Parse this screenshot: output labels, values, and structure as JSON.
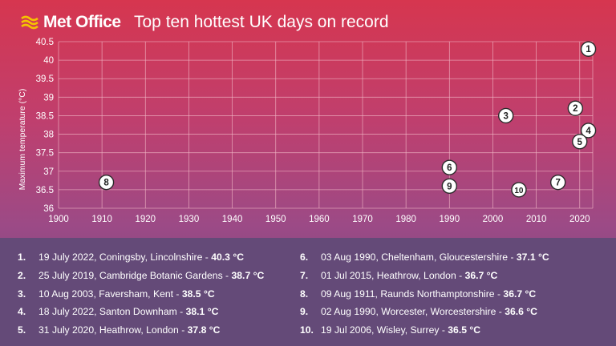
{
  "header": {
    "logo_text": "Met Office",
    "title": "Top ten hottest UK days on record"
  },
  "colors": {
    "grid": "#f2b8c6",
    "axis_text": "#ffffff",
    "marker_fill": "#ffffff",
    "marker_stroke": "#2a2a2a",
    "list_bg": "#644a78"
  },
  "chart_data": {
    "type": "scatter",
    "title": "",
    "xlabel": "",
    "ylabel": "Maximum temperature (°C)",
    "xlim": [
      1900,
      2023
    ],
    "ylim": [
      36,
      40.5
    ],
    "x_ticks": [
      1900,
      1910,
      1920,
      1930,
      1940,
      1950,
      1960,
      1970,
      1980,
      1990,
      2000,
      2010,
      2020
    ],
    "y_ticks": [
      36,
      36.5,
      37,
      37.5,
      38,
      38.5,
      39,
      39.5,
      40,
      40.5
    ],
    "grid": true,
    "points": [
      {
        "label": "1",
        "x": 2022,
        "y": 40.3
      },
      {
        "label": "2",
        "x": 2019,
        "y": 38.7
      },
      {
        "label": "3",
        "x": 2003,
        "y": 38.5
      },
      {
        "label": "4",
        "x": 2022,
        "y": 38.1
      },
      {
        "label": "5",
        "x": 2020,
        "y": 37.8
      },
      {
        "label": "6",
        "x": 1990,
        "y": 37.1
      },
      {
        "label": "7",
        "x": 2015,
        "y": 36.7
      },
      {
        "label": "8",
        "x": 1911,
        "y": 36.7
      },
      {
        "label": "9",
        "x": 1990,
        "y": 36.6
      },
      {
        "label": "10",
        "x": 2006,
        "y": 36.5
      }
    ]
  },
  "list": [
    {
      "num": "1.",
      "text": "19 July 2022, Coningsby, Lincolnshire - ",
      "temp": "40.3 °C"
    },
    {
      "num": "2.",
      "text": "25 July 2019, Cambridge Botanic Gardens - ",
      "temp": "38.7 °C"
    },
    {
      "num": "3.",
      "text": "10 Aug 2003, Faversham, Kent - ",
      "temp": "38.5 °C"
    },
    {
      "num": "4.",
      "text": "18 July 2022, Santon Downham - ",
      "temp": "38.1 °C"
    },
    {
      "num": "5.",
      "text": "31 July 2020, Heathrow, London - ",
      "temp": "37.8 °C"
    },
    {
      "num": "6.",
      "text": "03 Aug 1990, Cheltenham, Gloucestershire - ",
      "temp": "37.1 °C"
    },
    {
      "num": "7.",
      "text": "01 Jul 2015, Heathrow, London - ",
      "temp": "36.7 °C"
    },
    {
      "num": "8.",
      "text": "09 Aug 1911, Raunds Northamptonshire - ",
      "temp": "36.7 °C"
    },
    {
      "num": "9.",
      "text": "02 Aug 1990, Worcester, Worcestershire - ",
      "temp": "36.6 °C"
    },
    {
      "num": "10.",
      "text": "19 Jul 2006, Wisley, Surrey - ",
      "temp": "36.5 °C"
    }
  ]
}
